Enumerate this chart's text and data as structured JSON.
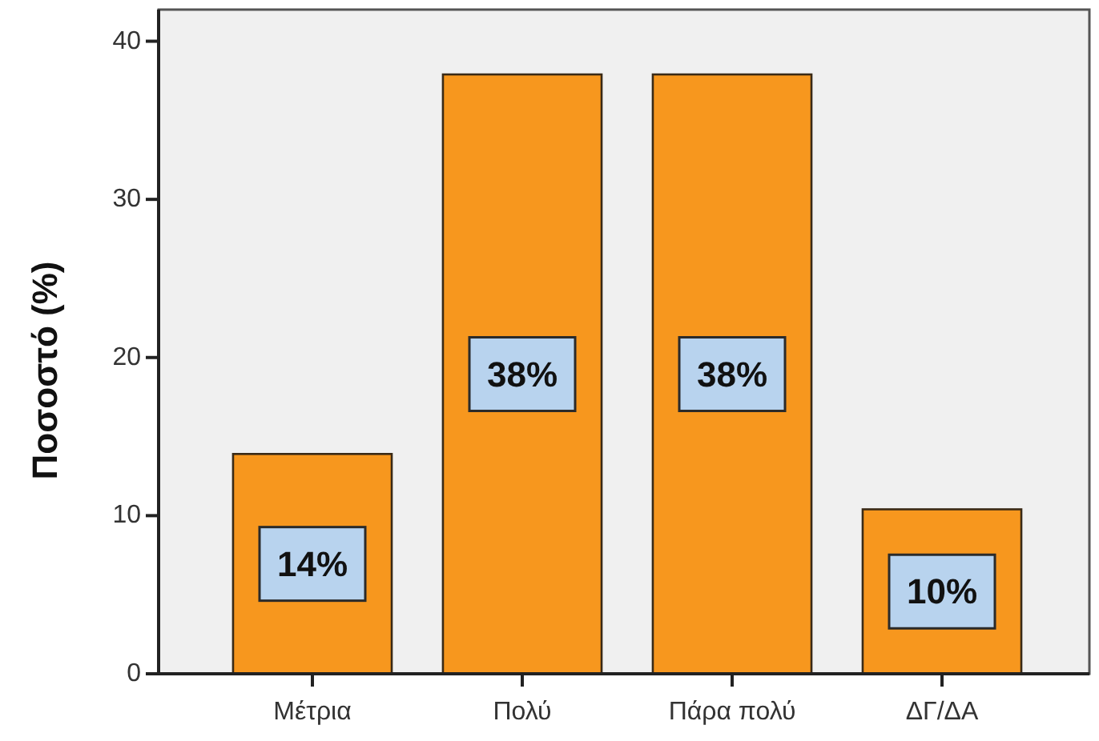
{
  "chart_data": {
    "type": "bar",
    "ylabel": "Ποσοστό (%)",
    "categories": [
      "Μέτρια",
      "Πολύ",
      "Πάρα πολύ",
      "ΔΓ/ΔΑ"
    ],
    "values": [
      13.9,
      37.9,
      37.9,
      10.4
    ],
    "color": "#f7971e",
    "value_labels": [
      "14%",
      "38%",
      "38%",
      "10%"
    ],
    "ylim": [
      0,
      42
    ],
    "yticks": [
      0,
      10,
      20,
      30,
      40
    ]
  }
}
